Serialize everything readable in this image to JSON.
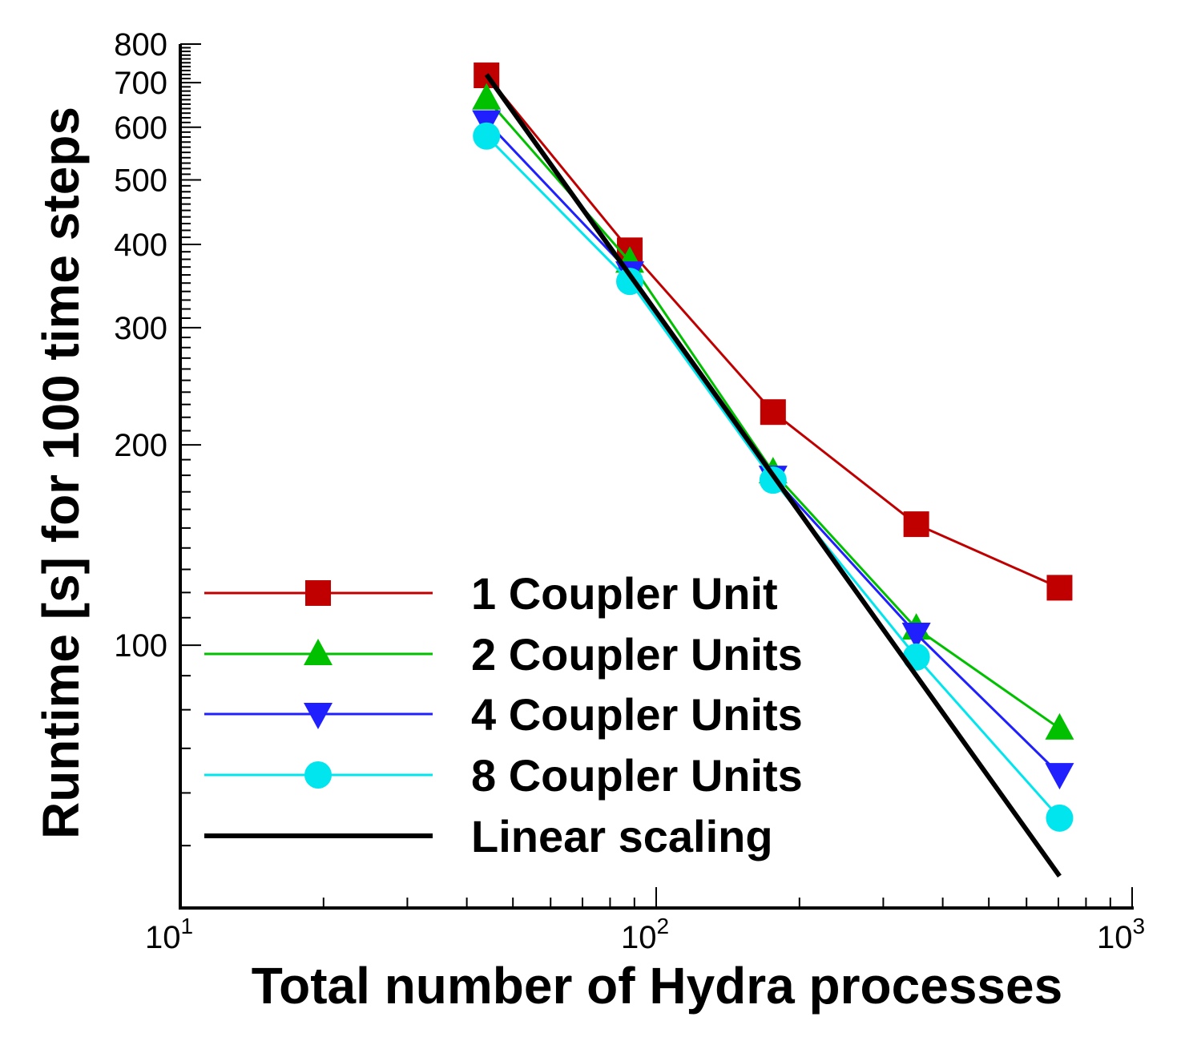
{
  "chart_data": {
    "type": "line",
    "xlabel": "Total number of Hydra processes",
    "ylabel": "Runtime [s] for 100 time steps",
    "xscale": "log",
    "yscale": "log",
    "xlim": [
      10,
      1000
    ],
    "ylim": [
      40.3,
      800
    ],
    "x": [
      44,
      88,
      176,
      352,
      704
    ],
    "xticks": [
      {
        "value": 10,
        "base": "10",
        "exp": "1"
      },
      {
        "value": 100,
        "base": "10",
        "exp": "2"
      },
      {
        "value": 1000,
        "base": "10",
        "exp": "3"
      }
    ],
    "yticks": [
      {
        "value": 100,
        "label": "100"
      },
      {
        "value": 200,
        "label": "200"
      },
      {
        "value": 300,
        "label": "300"
      },
      {
        "value": 400,
        "label": "400"
      },
      {
        "value": 500,
        "label": "500"
      },
      {
        "value": 600,
        "label": "600"
      },
      {
        "value": 700,
        "label": "700"
      },
      {
        "value": 800,
        "label": "800"
      }
    ],
    "grid": false,
    "legend_position": "bottom-left",
    "series": [
      {
        "name": "1 Coupler Unit",
        "color": "#c00000",
        "marker": "square",
        "values": [
          718,
          392,
          224,
          152,
          122
        ]
      },
      {
        "name": "2 Coupler Units",
        "color": "#00c000",
        "marker": "triangle-up",
        "values": [
          663,
          377,
          182,
          106,
          75
        ]
      },
      {
        "name": "4 Coupler Units",
        "color": "#2020ff",
        "marker": "triangle-down",
        "values": [
          612,
          363,
          179,
          104,
          64
        ]
      },
      {
        "name": "8 Coupler Units",
        "color": "#00e5ee",
        "marker": "circle",
        "values": [
          582,
          352,
          177,
          96,
          55
        ]
      },
      {
        "name": "Linear scaling",
        "color": "#000000",
        "marker": "none",
        "x": [
          44,
          704
        ],
        "values": [
          720,
          45
        ]
      }
    ]
  }
}
